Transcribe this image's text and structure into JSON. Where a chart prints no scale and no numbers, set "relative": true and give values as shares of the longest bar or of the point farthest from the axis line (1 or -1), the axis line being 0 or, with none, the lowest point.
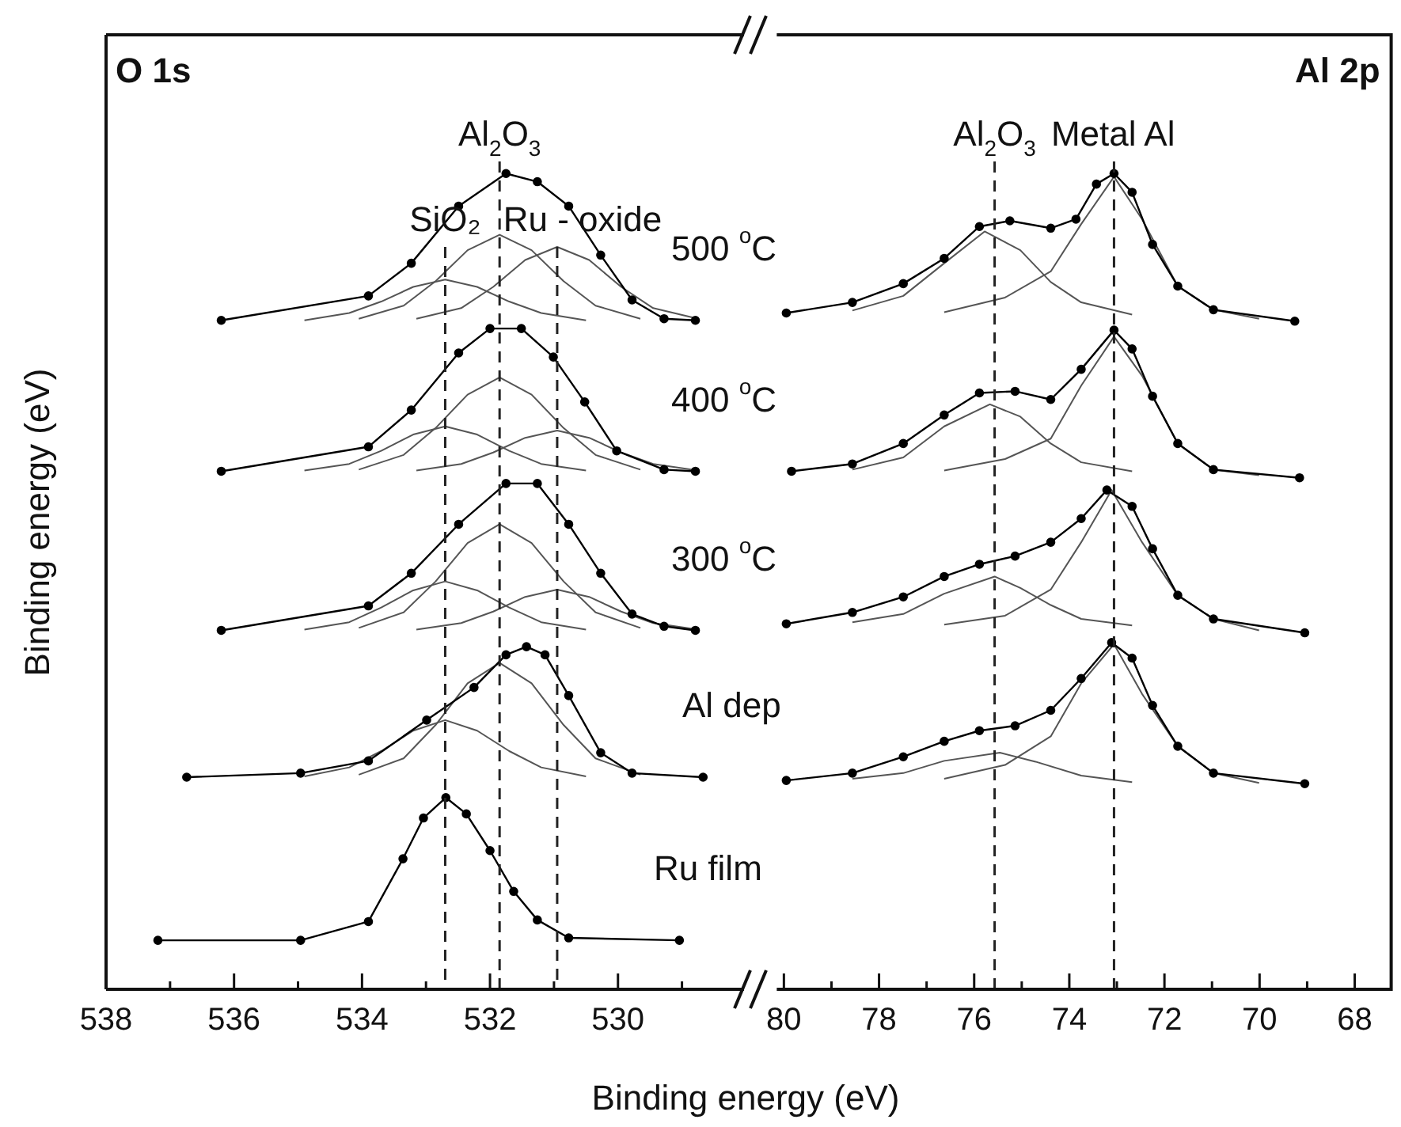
{
  "chart_data": [
    {
      "type": "line",
      "relative": true,
      "ylabel": "Binding energy (eV)",
      "xlabel": "Binding energy (eV)",
      "xlim": [
        538,
        528.03
      ],
      "xticks": [
        538,
        {
          "value": 537,
          "label": null
        },
        536,
        {
          "value": 535,
          "label": null
        },
        534,
        {
          "value": 533,
          "label": null
        },
        532,
        {
          "value": 531,
          "label": null
        },
        530,
        {
          "value": 529,
          "label": null
        }
      ],
      "grid": false,
      "legend": false,
      "annotations": [
        "O 1s"
      ],
      "ref_lines": [
        {
          "axis": "x",
          "value": 531.85,
          "line_style": "dashed",
          "label": "Al$_{2}$O$_{3}$"
        },
        {
          "axis": "x",
          "value": 532.7,
          "line_style": "dashed",
          "label": "SiO₂"
        },
        {
          "axis": "x",
          "value": 530.95,
          "line_style": "dashed",
          "label": "Ru - oxide"
        }
      ],
      "series": [
        {
          "type": "line",
          "name": "Ru film",
          "marker": "circle",
          "color": "#000000",
          "x": [
            537.19,
            534.96,
            533.9,
            533.36,
            533.04,
            532.69,
            532.37,
            532.0,
            531.63,
            531.26,
            530.77,
            529.04
          ],
          "values": [
            0.06,
            0.06,
            0.083,
            0.16,
            0.21,
            0.235,
            0.215,
            0.17,
            0.12,
            0.085,
            0.063,
            0.06
          ]
        },
        {
          "type": "line",
          "name": "Al dep",
          "marker": "circle",
          "color": "#000000",
          "x": [
            536.74,
            534.96,
            533.9,
            532.99,
            532.25,
            531.75,
            531.43,
            531.14,
            530.77,
            530.27,
            529.78,
            528.67
          ],
          "values": [
            0.26,
            0.265,
            0.28,
            0.33,
            0.37,
            0.41,
            0.42,
            0.41,
            0.36,
            0.29,
            0.265,
            0.26
          ]
        },
        {
          "type": "line",
          "marker": "none",
          "color": "#555555",
          "x": [
            530.5,
            531.2,
            531.7,
            532.2,
            532.7,
            533.2,
            533.7,
            534.2,
            534.9
          ],
          "values": [
            0.261,
            0.272,
            0.292,
            0.317,
            0.33,
            0.317,
            0.292,
            0.272,
            0.261
          ]
        },
        {
          "type": "line",
          "marker": "none",
          "color": "#555555",
          "x": [
            529.65,
            530.35,
            530.85,
            531.35,
            531.85,
            532.35,
            532.85,
            533.35,
            534.05
          ],
          "values": [
            0.263,
            0.283,
            0.324,
            0.375,
            0.4,
            0.375,
            0.324,
            0.283,
            0.263
          ]
        },
        {
          "type": "line",
          "name": "300 $^{o}$C",
          "marker": "circle",
          "color": "#000000",
          "x": [
            536.2,
            533.9,
            533.23,
            532.49,
            531.75,
            531.26,
            530.77,
            530.27,
            529.78,
            529.28,
            528.79
          ],
          "values": [
            0.44,
            0.47,
            0.51,
            0.57,
            0.62,
            0.62,
            0.57,
            0.51,
            0.46,
            0.445,
            0.44
          ]
        },
        {
          "type": "line",
          "marker": "none",
          "color": "#555555",
          "x": [
            530.5,
            531.2,
            531.7,
            532.2,
            532.7,
            533.2,
            533.7,
            534.2,
            534.9
          ],
          "values": [
            0.441,
            0.45,
            0.468,
            0.489,
            0.5,
            0.489,
            0.468,
            0.45,
            0.441
          ]
        },
        {
          "type": "line",
          "marker": "none",
          "color": "#555555",
          "x": [
            529.65,
            530.35,
            530.85,
            531.35,
            531.85,
            532.35,
            532.85,
            533.35,
            534.05
          ],
          "values": [
            0.443,
            0.462,
            0.5,
            0.547,
            0.57,
            0.547,
            0.5,
            0.462,
            0.443
          ]
        },
        {
          "type": "line",
          "marker": "none",
          "color": "#555555",
          "x": [
            528.75,
            529.45,
            529.95,
            530.45,
            530.95,
            531.45,
            531.95,
            532.45,
            533.15
          ],
          "values": [
            0.441,
            0.449,
            0.463,
            0.481,
            0.49,
            0.481,
            0.463,
            0.449,
            0.441
          ]
        },
        {
          "type": "line",
          "name": "400 $^{o}$C",
          "marker": "circle",
          "color": "#000000",
          "x": [
            536.2,
            533.9,
            533.23,
            532.49,
            532.0,
            531.51,
            531.01,
            530.52,
            530.02,
            529.28,
            528.79
          ],
          "values": [
            0.635,
            0.665,
            0.71,
            0.78,
            0.81,
            0.81,
            0.775,
            0.72,
            0.66,
            0.637,
            0.635
          ]
        },
        {
          "type": "line",
          "marker": "none",
          "color": "#555555",
          "x": [
            530.5,
            531.2,
            531.7,
            532.2,
            532.7,
            533.2,
            533.7,
            534.2,
            534.9
          ],
          "values": [
            0.636,
            0.644,
            0.66,
            0.68,
            0.69,
            0.68,
            0.66,
            0.644,
            0.636
          ]
        },
        {
          "type": "line",
          "marker": "none",
          "color": "#555555",
          "x": [
            529.65,
            530.35,
            530.85,
            531.35,
            531.85,
            532.35,
            532.85,
            533.35,
            534.05
          ],
          "values": [
            0.637,
            0.655,
            0.688,
            0.729,
            0.75,
            0.729,
            0.688,
            0.655,
            0.637
          ]
        },
        {
          "type": "line",
          "marker": "none",
          "color": "#555555",
          "x": [
            528.75,
            529.45,
            529.95,
            530.45,
            530.95,
            531.45,
            531.95,
            532.45,
            533.15
          ],
          "values": [
            0.636,
            0.644,
            0.658,
            0.676,
            0.685,
            0.676,
            0.658,
            0.644,
            0.636
          ]
        },
        {
          "type": "line",
          "name": "500 $^{o}$C",
          "marker": "circle",
          "color": "#000000",
          "x": [
            536.2,
            533.9,
            533.23,
            532.49,
            531.75,
            531.26,
            530.77,
            530.27,
            529.78,
            529.28,
            528.79
          ],
          "values": [
            0.82,
            0.85,
            0.89,
            0.96,
            1.0,
            0.99,
            0.96,
            0.9,
            0.845,
            0.822,
            0.82
          ]
        },
        {
          "type": "line",
          "marker": "none",
          "color": "#555555",
          "x": [
            530.5,
            531.2,
            531.7,
            532.2,
            532.7,
            533.2,
            533.7,
            534.2,
            534.9
          ],
          "values": [
            0.82,
            0.829,
            0.843,
            0.861,
            0.87,
            0.861,
            0.843,
            0.829,
            0.82
          ]
        },
        {
          "type": "line",
          "marker": "none",
          "color": "#555555",
          "x": [
            529.65,
            530.35,
            530.85,
            531.35,
            531.85,
            532.35,
            532.85,
            533.35,
            534.05
          ],
          "values": [
            0.822,
            0.838,
            0.868,
            0.906,
            0.925,
            0.906,
            0.868,
            0.838,
            0.822
          ]
        },
        {
          "type": "line",
          "marker": "none",
          "color": "#555555",
          "x": [
            528.75,
            529.45,
            529.95,
            530.45,
            530.95,
            531.45,
            531.95,
            532.45,
            533.15
          ],
          "values": [
            0.822,
            0.835,
            0.861,
            0.894,
            0.91,
            0.894,
            0.861,
            0.835,
            0.822
          ]
        }
      ]
    },
    {
      "type": "line",
      "relative": true,
      "xlim": [
        80.15,
        67.2
      ],
      "xticks": [
        80,
        {
          "value": 79,
          "label": null
        },
        78,
        {
          "value": 77,
          "label": null
        },
        76,
        {
          "value": 75,
          "label": null
        },
        74,
        {
          "value": 73,
          "label": null
        },
        72,
        {
          "value": 71,
          "label": null
        },
        70,
        {
          "value": 69,
          "label": null
        },
        68
      ],
      "grid": false,
      "legend": false,
      "annotations": [
        "Al 2p"
      ],
      "ref_lines": [
        {
          "axis": "x",
          "value": 73.06,
          "line_style": "dashed",
          "label": "Metal Al"
        },
        {
          "axis": "x",
          "value": 75.57,
          "line_style": "dashed",
          "label": "Al$_{2}$O$_{3}$"
        }
      ],
      "series": [
        {
          "type": "line",
          "marker": "circle",
          "color": "#000000",
          "x": [
            79.95,
            78.56,
            77.49,
            76.63,
            75.89,
            75.25,
            74.39,
            73.86,
            73.43,
            73.06,
            72.68,
            72.25,
            71.72,
            70.97,
            69.26
          ],
          "values": [
            0.829,
            0.842,
            0.865,
            0.896,
            0.935,
            0.942,
            0.933,
            0.944,
            0.987,
            1.0,
            0.977,
            0.913,
            0.862,
            0.833,
            0.819
          ]
        },
        {
          "type": "line",
          "marker": "none",
          "color": "#555555",
          "x": [
            78.56,
            77.49,
            76.63,
            75.78,
            75.03,
            74.39,
            73.75,
            72.68
          ],
          "values": [
            0.832,
            0.85,
            0.89,
            0.929,
            0.906,
            0.867,
            0.842,
            0.827
          ]
        },
        {
          "type": "line",
          "marker": "none",
          "color": "#555555",
          "x": [
            76.63,
            75.35,
            74.39,
            73.75,
            73.06,
            72.47,
            71.72,
            70.97,
            70.01
          ],
          "values": [
            0.83,
            0.848,
            0.88,
            0.938,
            0.996,
            0.944,
            0.862,
            0.833,
            0.822
          ]
        },
        {
          "type": "line",
          "marker": "circle",
          "color": "#000000",
          "x": [
            79.84,
            78.56,
            77.49,
            76.63,
            75.89,
            75.14,
            74.39,
            73.75,
            73.06,
            72.68,
            72.25,
            71.72,
            70.97,
            69.16
          ],
          "values": [
            0.635,
            0.644,
            0.669,
            0.704,
            0.731,
            0.733,
            0.723,
            0.76,
            0.808,
            0.785,
            0.727,
            0.669,
            0.637,
            0.627
          ]
        },
        {
          "type": "line",
          "marker": "none",
          "color": "#555555",
          "x": [
            78.56,
            77.49,
            76.63,
            75.67,
            75.03,
            74.39,
            73.75,
            72.68
          ],
          "values": [
            0.637,
            0.652,
            0.69,
            0.717,
            0.702,
            0.669,
            0.646,
            0.635
          ]
        },
        {
          "type": "line",
          "marker": "none",
          "color": "#555555",
          "x": [
            76.63,
            75.35,
            74.39,
            73.75,
            73.06,
            72.47,
            71.72,
            70.97,
            70.01
          ],
          "values": [
            0.636,
            0.65,
            0.675,
            0.74,
            0.8,
            0.752,
            0.669,
            0.637,
            0.63
          ]
        },
        {
          "type": "line",
          "marker": "circle",
          "color": "#000000",
          "x": [
            79.95,
            78.56,
            77.49,
            76.63,
            75.89,
            75.14,
            74.39,
            73.75,
            73.21,
            72.68,
            72.25,
            71.72,
            70.97,
            69.05
          ],
          "values": [
            0.448,
            0.462,
            0.481,
            0.506,
            0.521,
            0.531,
            0.548,
            0.577,
            0.612,
            0.592,
            0.54,
            0.483,
            0.454,
            0.437
          ]
        },
        {
          "type": "line",
          "marker": "none",
          "color": "#555555",
          "x": [
            78.56,
            77.49,
            76.63,
            75.57,
            75.03,
            74.39,
            73.75,
            72.68
          ],
          "values": [
            0.45,
            0.46,
            0.485,
            0.506,
            0.492,
            0.471,
            0.454,
            0.446
          ]
        },
        {
          "type": "line",
          "marker": "none",
          "color": "#555555",
          "x": [
            76.63,
            75.35,
            74.39,
            73.75,
            73.11,
            72.47,
            71.72,
            70.97,
            70.01
          ],
          "values": [
            0.447,
            0.458,
            0.49,
            0.548,
            0.612,
            0.548,
            0.483,
            0.454,
            0.44
          ]
        },
        {
          "type": "line",
          "marker": "circle",
          "color": "#000000",
          "x": [
            79.95,
            78.56,
            77.49,
            76.63,
            75.89,
            75.14,
            74.39,
            73.75,
            73.11,
            72.68,
            72.25,
            71.72,
            70.97,
            69.05
          ],
          "values": [
            0.256,
            0.265,
            0.285,
            0.304,
            0.317,
            0.323,
            0.342,
            0.381,
            0.425,
            0.406,
            0.348,
            0.298,
            0.265,
            0.252
          ]
        },
        {
          "type": "line",
          "marker": "none",
          "color": "#555555",
          "x": [
            78.56,
            77.49,
            76.63,
            75.46,
            74.71,
            73.75,
            72.68
          ],
          "values": [
            0.258,
            0.265,
            0.28,
            0.29,
            0.279,
            0.262,
            0.254
          ]
        },
        {
          "type": "line",
          "marker": "none",
          "color": "#555555",
          "x": [
            76.63,
            75.35,
            74.39,
            73.75,
            73.06,
            72.47,
            71.72,
            70.97,
            70.01
          ],
          "values": [
            0.258,
            0.275,
            0.31,
            0.375,
            0.423,
            0.362,
            0.298,
            0.265,
            0.253
          ]
        }
      ]
    }
  ]
}
